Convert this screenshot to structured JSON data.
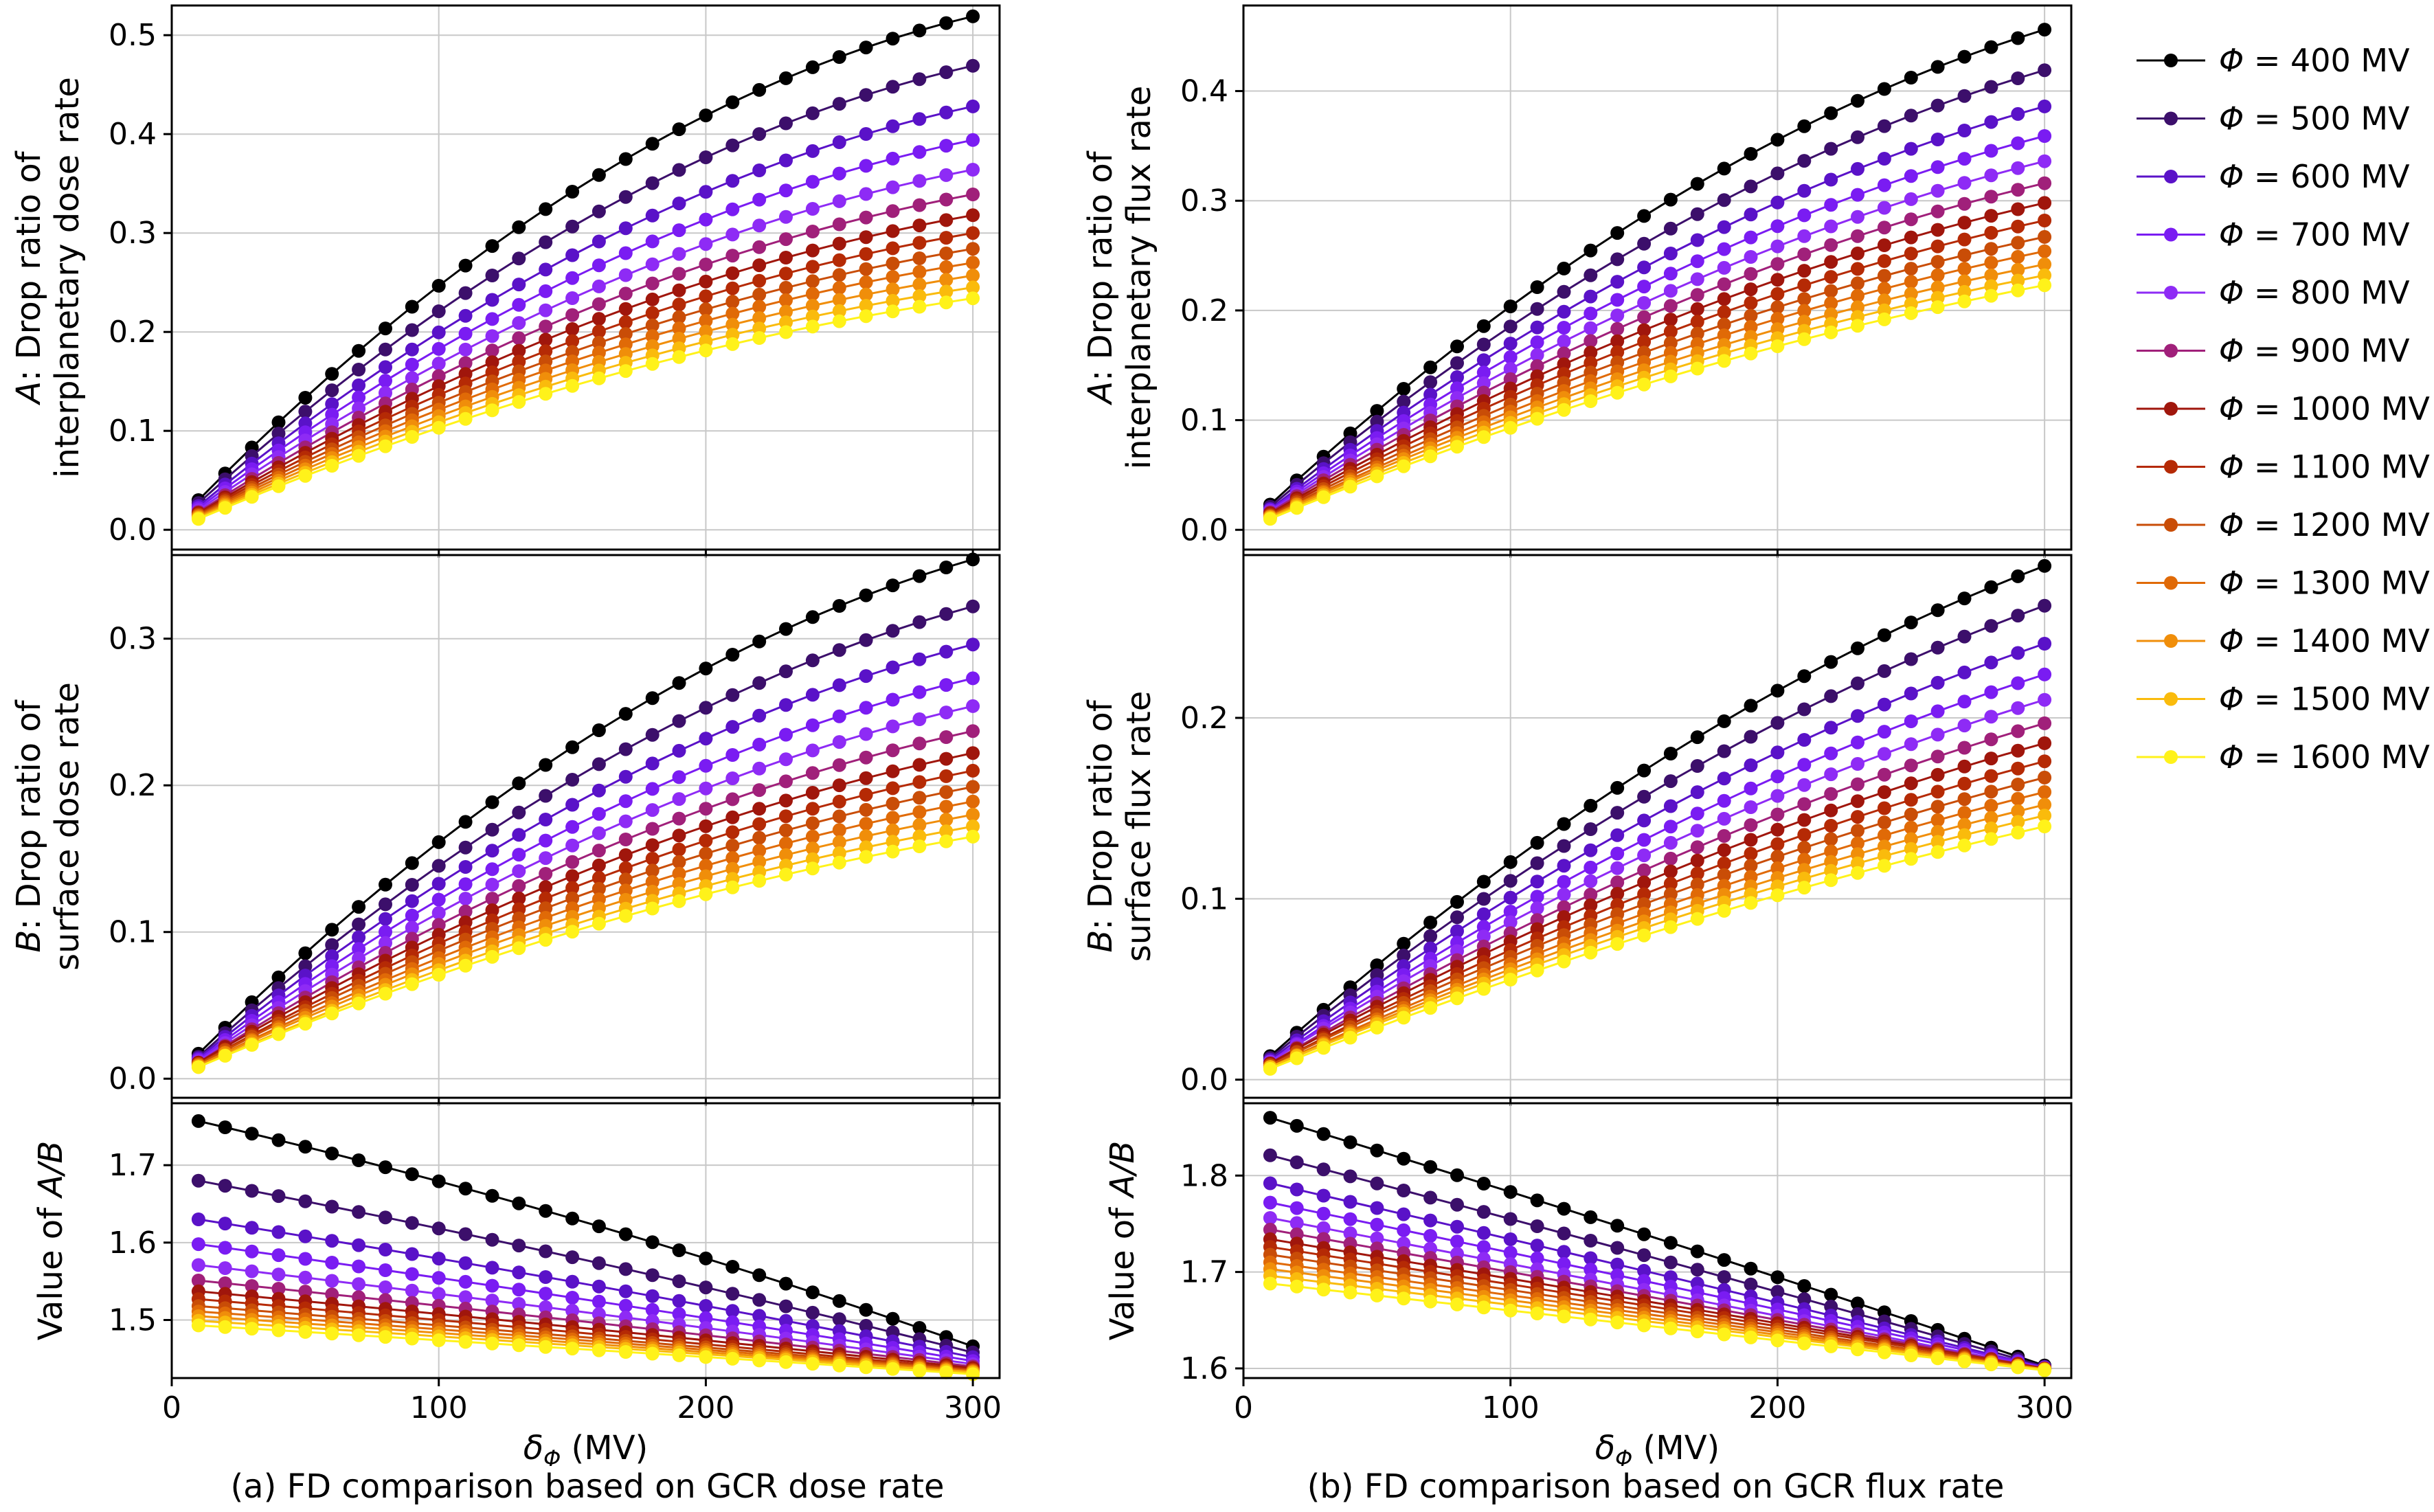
{
  "legend": {
    "symbol": "Φ",
    "eq": " = ",
    "unit": " MV",
    "entries": [
      {
        "value": "400",
        "color": "#000000"
      },
      {
        "value": "500",
        "color": "#3c0f6b"
      },
      {
        "value": "600",
        "color": "#5a12c8"
      },
      {
        "value": "700",
        "color": "#7a1cf2"
      },
      {
        "value": "800",
        "color": "#8e2bf5"
      },
      {
        "value": "900",
        "color": "#a0207a"
      },
      {
        "value": "1000",
        "color": "#a0160c"
      },
      {
        "value": "1100",
        "color": "#b52a05"
      },
      {
        "value": "1200",
        "color": "#c94d07"
      },
      {
        "value": "1300",
        "color": "#e06a07"
      },
      {
        "value": "1400",
        "color": "#f08e0a"
      },
      {
        "value": "1500",
        "color": "#fabb0c"
      },
      {
        "value": "1600",
        "color": "#fff21a"
      }
    ]
  },
  "chart_data": [
    {
      "id": "a-top",
      "type": "line",
      "xlim": [
        0,
        310
      ],
      "ylim": [
        -0.02,
        0.53
      ],
      "xticks": [
        0,
        100,
        200,
        300
      ],
      "yticks": [
        "0.0",
        "0.1",
        "0.2",
        "0.3",
        "0.4",
        "0.5"
      ],
      "ylabel_italic": "A",
      "ylabel_rest": ": Drop ratio of",
      "ylabel_line2": "interplanetary dose rate",
      "x": {
        "start": 10,
        "end": 300,
        "step": 10
      },
      "series": [
        {
          "start": 0.03,
          "end": 0.519,
          "curve": 0.62
        },
        {
          "start": 0.027,
          "end": 0.469,
          "curve": 0.6
        },
        {
          "start": 0.024,
          "end": 0.428,
          "curve": 0.58
        },
        {
          "start": 0.022,
          "end": 0.394,
          "curve": 0.57
        },
        {
          "start": 0.02,
          "end": 0.364,
          "curve": 0.56
        },
        {
          "start": 0.018,
          "end": 0.339,
          "curve": 0.55
        },
        {
          "start": 0.017,
          "end": 0.318,
          "curve": 0.54
        },
        {
          "start": 0.016,
          "end": 0.3,
          "curve": 0.53
        },
        {
          "start": 0.015,
          "end": 0.284,
          "curve": 0.52
        },
        {
          "start": 0.014,
          "end": 0.27,
          "curve": 0.51
        },
        {
          "start": 0.013,
          "end": 0.257,
          "curve": 0.5
        },
        {
          "start": 0.012,
          "end": 0.245,
          "curve": 0.49
        },
        {
          "start": 0.011,
          "end": 0.234,
          "curve": 0.48
        }
      ]
    },
    {
      "id": "a-mid",
      "type": "line",
      "xlim": [
        0,
        310
      ],
      "ylim": [
        -0.013,
        0.357
      ],
      "xticks": [
        0,
        100,
        200,
        300
      ],
      "yticks": [
        "0.0",
        "0.1",
        "0.2",
        "0.3"
      ],
      "ylabel_italic": "B",
      "ylabel_rest": ": Drop ratio of",
      "ylabel_line2": "surface dose rate",
      "x": {
        "start": 10,
        "end": 300,
        "step": 10
      },
      "series": [
        {
          "start": 0.017,
          "end": 0.354,
          "curve": 0.55
        },
        {
          "start": 0.015,
          "end": 0.322,
          "curve": 0.53
        },
        {
          "start": 0.014,
          "end": 0.296,
          "curve": 0.52
        },
        {
          "start": 0.013,
          "end": 0.273,
          "curve": 0.51
        },
        {
          "start": 0.012,
          "end": 0.254,
          "curve": 0.5
        },
        {
          "start": 0.011,
          "end": 0.237,
          "curve": 0.49
        },
        {
          "start": 0.011,
          "end": 0.222,
          "curve": 0.48
        },
        {
          "start": 0.01,
          "end": 0.21,
          "curve": 0.47
        },
        {
          "start": 0.01,
          "end": 0.199,
          "curve": 0.46
        },
        {
          "start": 0.009,
          "end": 0.189,
          "curve": 0.45
        },
        {
          "start": 0.009,
          "end": 0.18,
          "curve": 0.44
        },
        {
          "start": 0.008,
          "end": 0.172,
          "curve": 0.43
        },
        {
          "start": 0.008,
          "end": 0.165,
          "curve": 0.42
        }
      ]
    },
    {
      "id": "a-bot",
      "type": "line",
      "xlim": [
        0,
        310
      ],
      "ylim": [
        1.425,
        1.78
      ],
      "xticks": [
        0,
        100,
        200,
        300
      ],
      "yticks": [
        "1.5",
        "1.6",
        "1.7"
      ],
      "ylabel_italic": "A/B",
      "ylabel_rest": "",
      "ylabel_prefix": "Value of ",
      "ylabel_line2": "",
      "show_xticklabels": true,
      "xlabel": "δ",
      "xlabel_sub": "Φ",
      "xlabel_unit": " (MV)",
      "x": {
        "start": 10,
        "end": 300,
        "step": 10
      },
      "series": [
        {
          "start": 1.757,
          "end": 1.466,
          "curve": -0.2
        },
        {
          "start": 1.68,
          "end": 1.458,
          "curve": -0.15
        },
        {
          "start": 1.63,
          "end": 1.452,
          "curve": -0.12
        },
        {
          "start": 1.598,
          "end": 1.447,
          "curve": -0.1
        },
        {
          "start": 1.571,
          "end": 1.443,
          "curve": -0.09
        },
        {
          "start": 1.551,
          "end": 1.44,
          "curve": -0.08
        },
        {
          "start": 1.537,
          "end": 1.438,
          "curve": -0.07
        },
        {
          "start": 1.527,
          "end": 1.436,
          "curve": -0.06
        },
        {
          "start": 1.518,
          "end": 1.435,
          "curve": -0.05
        },
        {
          "start": 1.511,
          "end": 1.434,
          "curve": -0.05
        },
        {
          "start": 1.505,
          "end": 1.433,
          "curve": -0.04
        },
        {
          "start": 1.499,
          "end": 1.432,
          "curve": -0.04
        },
        {
          "start": 1.493,
          "end": 1.43,
          "curve": -0.03
        }
      ]
    },
    {
      "id": "b-top",
      "type": "line",
      "xlim": [
        0,
        310
      ],
      "ylim": [
        -0.018,
        0.478
      ],
      "xticks": [
        0,
        100,
        200,
        300
      ],
      "yticks": [
        "0.0",
        "0.1",
        "0.2",
        "0.3",
        "0.4"
      ],
      "ylabel_italic": "A",
      "ylabel_rest": ": Drop ratio of",
      "ylabel_line2": "interplanetary flux rate",
      "x": {
        "start": 10,
        "end": 300,
        "step": 10
      },
      "series": [
        {
          "start": 0.023,
          "end": 0.456,
          "curve": 0.5
        },
        {
          "start": 0.021,
          "end": 0.419,
          "curve": 0.48
        },
        {
          "start": 0.019,
          "end": 0.386,
          "curve": 0.47
        },
        {
          "start": 0.018,
          "end": 0.359,
          "curve": 0.46
        },
        {
          "start": 0.017,
          "end": 0.336,
          "curve": 0.45
        },
        {
          "start": 0.016,
          "end": 0.316,
          "curve": 0.44
        },
        {
          "start": 0.015,
          "end": 0.298,
          "curve": 0.43
        },
        {
          "start": 0.014,
          "end": 0.282,
          "curve": 0.42
        },
        {
          "start": 0.013,
          "end": 0.267,
          "curve": 0.41
        },
        {
          "start": 0.012,
          "end": 0.254,
          "curve": 0.4
        },
        {
          "start": 0.012,
          "end": 0.242,
          "curve": 0.39
        },
        {
          "start": 0.011,
          "end": 0.232,
          "curve": 0.38
        },
        {
          "start": 0.01,
          "end": 0.223,
          "curve": 0.37
        }
      ]
    },
    {
      "id": "b-mid",
      "type": "line",
      "xlim": [
        0,
        310
      ],
      "ylim": [
        -0.01,
        0.29
      ],
      "xticks": [
        0,
        100,
        200,
        300
      ],
      "yticks": [
        "0.0",
        "0.1",
        "0.2"
      ],
      "ylabel_italic": "B",
      "ylabel_rest": ": Drop ratio of",
      "ylabel_line2": "surface flux rate",
      "x": {
        "start": 10,
        "end": 300,
        "step": 10
      },
      "series": [
        {
          "start": 0.013,
          "end": 0.284,
          "curve": 0.4
        },
        {
          "start": 0.012,
          "end": 0.262,
          "curve": 0.38
        },
        {
          "start": 0.011,
          "end": 0.241,
          "curve": 0.37
        },
        {
          "start": 0.01,
          "end": 0.224,
          "curve": 0.36
        },
        {
          "start": 0.01,
          "end": 0.21,
          "curve": 0.35
        },
        {
          "start": 0.009,
          "end": 0.197,
          "curve": 0.34
        },
        {
          "start": 0.009,
          "end": 0.186,
          "curve": 0.33
        },
        {
          "start": 0.008,
          "end": 0.176,
          "curve": 0.32
        },
        {
          "start": 0.008,
          "end": 0.167,
          "curve": 0.31
        },
        {
          "start": 0.007,
          "end": 0.159,
          "curve": 0.3
        },
        {
          "start": 0.007,
          "end": 0.152,
          "curve": 0.29
        },
        {
          "start": 0.007,
          "end": 0.146,
          "curve": 0.28
        },
        {
          "start": 0.006,
          "end": 0.14,
          "curve": 0.27
        }
      ]
    },
    {
      "id": "b-bot",
      "type": "line",
      "xlim": [
        0,
        310
      ],
      "ylim": [
        1.59,
        1.875
      ],
      "xticks": [
        0,
        100,
        200,
        300
      ],
      "yticks": [
        "1.6",
        "1.7",
        "1.8"
      ],
      "ylabel_italic": "A/B",
      "ylabel_rest": "",
      "ylabel_prefix": "Value of ",
      "ylabel_line2": "",
      "show_xticklabels": true,
      "xlabel": "δ",
      "xlabel_sub": "Φ",
      "xlabel_unit": " (MV)",
      "x": {
        "start": 10,
        "end": 300,
        "step": 10
      },
      "series": [
        {
          "start": 1.86,
          "end": 1.603,
          "curve": -0.05
        },
        {
          "start": 1.821,
          "end": 1.602,
          "curve": -0.04
        },
        {
          "start": 1.792,
          "end": 1.601,
          "curve": -0.03
        },
        {
          "start": 1.772,
          "end": 1.601,
          "curve": -0.03
        },
        {
          "start": 1.756,
          "end": 1.6,
          "curve": -0.02
        },
        {
          "start": 1.744,
          "end": 1.6,
          "curve": -0.02
        },
        {
          "start": 1.734,
          "end": 1.6,
          "curve": -0.02
        },
        {
          "start": 1.726,
          "end": 1.6,
          "curve": -0.01
        },
        {
          "start": 1.718,
          "end": 1.599,
          "curve": -0.01
        },
        {
          "start": 1.71,
          "end": 1.599,
          "curve": -0.01
        },
        {
          "start": 1.703,
          "end": 1.599,
          "curve": 0.0
        },
        {
          "start": 1.696,
          "end": 1.599,
          "curve": 0.0
        },
        {
          "start": 1.688,
          "end": 1.598,
          "curve": 0.0
        }
      ]
    }
  ],
  "captions": {
    "a": "(a) FD comparison based on GCR dose rate",
    "b": "(b) FD comparison based on GCR flux rate"
  }
}
